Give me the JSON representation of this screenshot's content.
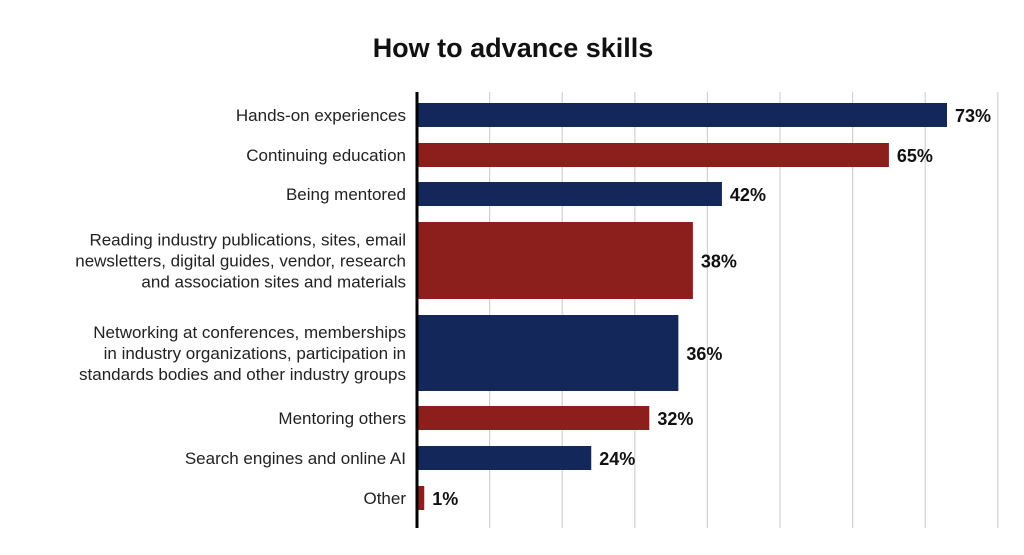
{
  "chart_data": {
    "type": "bar",
    "orientation": "horizontal",
    "title": "How to advance skills",
    "xlabel": "",
    "ylabel": "",
    "xlim": [
      0,
      100
    ],
    "grid": true,
    "value_suffix": "%",
    "categories": [
      [
        "Hands-on experiences"
      ],
      [
        "Continuing education"
      ],
      [
        "Being mentored"
      ],
      [
        "Reading industry publications, sites, email",
        "newsletters, digital guides, vendor, research",
        "and association sites and materials"
      ],
      [
        "Networking at conferences, memberships",
        "in industry organizations, participation in",
        "standards bodies and other industry groups"
      ],
      [
        "Mentoring others"
      ],
      [
        "Search engines and online AI"
      ],
      [
        "Other"
      ]
    ],
    "values": [
      73,
      65,
      42,
      38,
      36,
      32,
      24,
      1
    ],
    "value_labels": [
      "73%",
      "65%",
      "42%",
      "38%",
      "36%",
      "32%",
      "24%",
      "1%"
    ],
    "bar_colors": [
      "#14275a",
      "#8c1f1b",
      "#14275a",
      "#8c1f1b",
      "#14275a",
      "#8c1f1b",
      "#14275a",
      "#8c1f1b"
    ]
  }
}
